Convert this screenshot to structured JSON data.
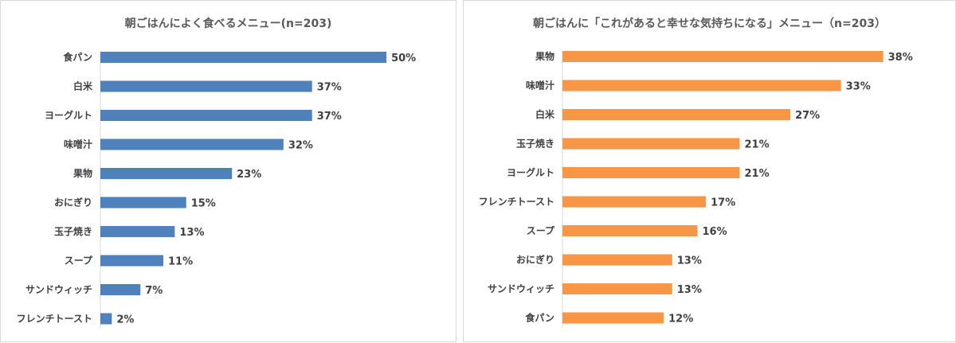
{
  "chart_data": [
    {
      "type": "bar",
      "orientation": "horizontal",
      "title": "朝ごはんによく食べるメニュー(n=203)",
      "categories": [
        "食パン",
        "白米",
        "ヨーグルト",
        "味噌汁",
        "果物",
        "おにぎり",
        "玉子焼き",
        "スープ",
        "サンドウィッチ",
        "フレンチトースト"
      ],
      "values": [
        50,
        37,
        37,
        32,
        23,
        15,
        13,
        11,
        7,
        2
      ],
      "value_labels": [
        "50%",
        "37%",
        "37%",
        "32%",
        "23%",
        "15%",
        "13%",
        "11%",
        "7%",
        "2%"
      ],
      "unit": "%",
      "xlim": [
        0,
        55
      ],
      "color": "#4f81bd",
      "grid": false,
      "legend": "none"
    },
    {
      "type": "bar",
      "orientation": "horizontal",
      "title": "朝ごはんに「これがあると幸せな気持ちになる」メニュー（n=203）",
      "categories": [
        "果物",
        "味噌汁",
        "白米",
        "玉子焼き",
        "ヨーグルト",
        "フレンチトースト",
        "スープ",
        "おにぎり",
        "サンドウィッチ",
        "食パン"
      ],
      "values": [
        38,
        33,
        27,
        21,
        21,
        17,
        16,
        13,
        13,
        12
      ],
      "value_labels": [
        "38%",
        "33%",
        "27%",
        "21%",
        "21%",
        "17%",
        "16%",
        "13%",
        "13%",
        "12%"
      ],
      "unit": "%",
      "xlim": [
        0,
        42
      ],
      "color": "#f79646",
      "grid": false,
      "legend": "none"
    }
  ]
}
